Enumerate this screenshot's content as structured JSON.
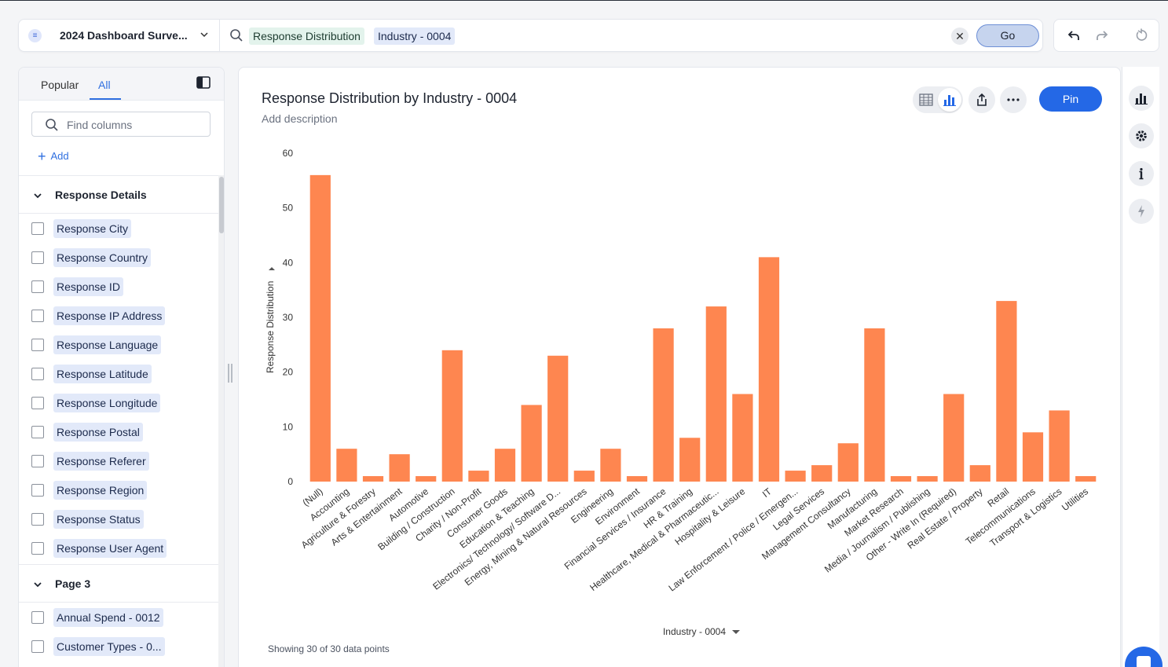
{
  "search": {
    "source_name": "2024 Dashboard Surve...",
    "measure_token": "Response Distribution",
    "attribute_token": "Industry - 0004",
    "clear_label": "✕",
    "go_label": "Go"
  },
  "left_panel": {
    "tabs": [
      {
        "label": "Popular"
      },
      {
        "label": "All"
      }
    ],
    "find_placeholder": "Find columns",
    "add_label": "Add",
    "sections": [
      {
        "title": "Response Details",
        "columns": [
          "Response City",
          "Response Country",
          "Response ID",
          "Response IP Address",
          "Response Language",
          "Response Latitude",
          "Response Longitude",
          "Response Postal",
          "Response Referer",
          "Response Region",
          "Response Status",
          "Response User Agent"
        ]
      },
      {
        "title": "Page 3",
        "columns": [
          "Annual Spend - 0012",
          "Customer Types - 0..."
        ]
      }
    ]
  },
  "main": {
    "title": "Response Distribution by Industry - 0004",
    "description_placeholder": "Add description",
    "pin_label": "Pin",
    "footer_note": "Showing 30 of 30 data points"
  },
  "colors": {
    "bar": "#fe8650",
    "accent": "#2468e6"
  },
  "chart_data": {
    "type": "bar",
    "title": "Response Distribution by Industry - 0004",
    "xlabel": "Industry - 0004",
    "ylabel": "Response Distribution",
    "ylim": [
      0,
      60
    ],
    "yticks": [
      0,
      10,
      20,
      30,
      40,
      50,
      60
    ],
    "grid": false,
    "categories": [
      "(Null)",
      "Accounting",
      "Agriculture & Forestry",
      "Arts & Entertainment",
      "Automotive",
      "Building / Construction",
      "Charity / Non-Profit",
      "Consumer Goods",
      "Education & Teaching",
      "Electronics/ Technology/ Software D...",
      "Energy, Mining & Natural Resources",
      "Engineering",
      "Environment",
      "Financial Services / Insurance",
      "HR & Training",
      "Healthcare, Medical & Pharmaceutic...",
      "Hospitality & Leisure",
      "IT",
      "Law Enforcement / Police / Emergen...",
      "Legal Services",
      "Management Consultancy",
      "Manufacturing",
      "Market Research",
      "Media / Journalism / Publishing",
      "Other - Write In (Required)",
      "Real Estate / Property",
      "Retail",
      "Telecommunications",
      "Transport & Logistics",
      "Utilities"
    ],
    "values": [
      56,
      6,
      1,
      5,
      1,
      24,
      2,
      6,
      14,
      23,
      2,
      6,
      1,
      28,
      8,
      32,
      16,
      41,
      2,
      3,
      7,
      28,
      1,
      1,
      16,
      3,
      33,
      9,
      13,
      1
    ]
  }
}
